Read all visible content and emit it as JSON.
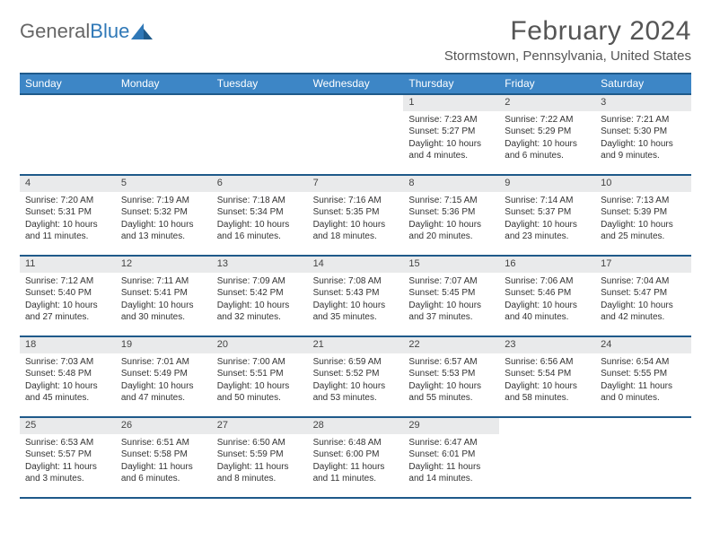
{
  "brand": {
    "part1": "General",
    "part2": "Blue"
  },
  "title": "February 2024",
  "location": "Stormstown, Pennsylvania, United States",
  "colors": {
    "header_bg": "#3d86c6",
    "header_border": "#1f5a8a",
    "daynum_bg": "#e9eaeb",
    "text": "#333333",
    "title_text": "#555555"
  },
  "weekdays": [
    "Sunday",
    "Monday",
    "Tuesday",
    "Wednesday",
    "Thursday",
    "Friday",
    "Saturday"
  ],
  "weeks": [
    [
      null,
      null,
      null,
      null,
      {
        "n": "1",
        "sr": "Sunrise: 7:23 AM",
        "ss": "Sunset: 5:27 PM",
        "dl": "Daylight: 10 hours and 4 minutes."
      },
      {
        "n": "2",
        "sr": "Sunrise: 7:22 AM",
        "ss": "Sunset: 5:29 PM",
        "dl": "Daylight: 10 hours and 6 minutes."
      },
      {
        "n": "3",
        "sr": "Sunrise: 7:21 AM",
        "ss": "Sunset: 5:30 PM",
        "dl": "Daylight: 10 hours and 9 minutes."
      }
    ],
    [
      {
        "n": "4",
        "sr": "Sunrise: 7:20 AM",
        "ss": "Sunset: 5:31 PM",
        "dl": "Daylight: 10 hours and 11 minutes."
      },
      {
        "n": "5",
        "sr": "Sunrise: 7:19 AM",
        "ss": "Sunset: 5:32 PM",
        "dl": "Daylight: 10 hours and 13 minutes."
      },
      {
        "n": "6",
        "sr": "Sunrise: 7:18 AM",
        "ss": "Sunset: 5:34 PM",
        "dl": "Daylight: 10 hours and 16 minutes."
      },
      {
        "n": "7",
        "sr": "Sunrise: 7:16 AM",
        "ss": "Sunset: 5:35 PM",
        "dl": "Daylight: 10 hours and 18 minutes."
      },
      {
        "n": "8",
        "sr": "Sunrise: 7:15 AM",
        "ss": "Sunset: 5:36 PM",
        "dl": "Daylight: 10 hours and 20 minutes."
      },
      {
        "n": "9",
        "sr": "Sunrise: 7:14 AM",
        "ss": "Sunset: 5:37 PM",
        "dl": "Daylight: 10 hours and 23 minutes."
      },
      {
        "n": "10",
        "sr": "Sunrise: 7:13 AM",
        "ss": "Sunset: 5:39 PM",
        "dl": "Daylight: 10 hours and 25 minutes."
      }
    ],
    [
      {
        "n": "11",
        "sr": "Sunrise: 7:12 AM",
        "ss": "Sunset: 5:40 PM",
        "dl": "Daylight: 10 hours and 27 minutes."
      },
      {
        "n": "12",
        "sr": "Sunrise: 7:11 AM",
        "ss": "Sunset: 5:41 PM",
        "dl": "Daylight: 10 hours and 30 minutes."
      },
      {
        "n": "13",
        "sr": "Sunrise: 7:09 AM",
        "ss": "Sunset: 5:42 PM",
        "dl": "Daylight: 10 hours and 32 minutes."
      },
      {
        "n": "14",
        "sr": "Sunrise: 7:08 AM",
        "ss": "Sunset: 5:43 PM",
        "dl": "Daylight: 10 hours and 35 minutes."
      },
      {
        "n": "15",
        "sr": "Sunrise: 7:07 AM",
        "ss": "Sunset: 5:45 PM",
        "dl": "Daylight: 10 hours and 37 minutes."
      },
      {
        "n": "16",
        "sr": "Sunrise: 7:06 AM",
        "ss": "Sunset: 5:46 PM",
        "dl": "Daylight: 10 hours and 40 minutes."
      },
      {
        "n": "17",
        "sr": "Sunrise: 7:04 AM",
        "ss": "Sunset: 5:47 PM",
        "dl": "Daylight: 10 hours and 42 minutes."
      }
    ],
    [
      {
        "n": "18",
        "sr": "Sunrise: 7:03 AM",
        "ss": "Sunset: 5:48 PM",
        "dl": "Daylight: 10 hours and 45 minutes."
      },
      {
        "n": "19",
        "sr": "Sunrise: 7:01 AM",
        "ss": "Sunset: 5:49 PM",
        "dl": "Daylight: 10 hours and 47 minutes."
      },
      {
        "n": "20",
        "sr": "Sunrise: 7:00 AM",
        "ss": "Sunset: 5:51 PM",
        "dl": "Daylight: 10 hours and 50 minutes."
      },
      {
        "n": "21",
        "sr": "Sunrise: 6:59 AM",
        "ss": "Sunset: 5:52 PM",
        "dl": "Daylight: 10 hours and 53 minutes."
      },
      {
        "n": "22",
        "sr": "Sunrise: 6:57 AM",
        "ss": "Sunset: 5:53 PM",
        "dl": "Daylight: 10 hours and 55 minutes."
      },
      {
        "n": "23",
        "sr": "Sunrise: 6:56 AM",
        "ss": "Sunset: 5:54 PM",
        "dl": "Daylight: 10 hours and 58 minutes."
      },
      {
        "n": "24",
        "sr": "Sunrise: 6:54 AM",
        "ss": "Sunset: 5:55 PM",
        "dl": "Daylight: 11 hours and 0 minutes."
      }
    ],
    [
      {
        "n": "25",
        "sr": "Sunrise: 6:53 AM",
        "ss": "Sunset: 5:57 PM",
        "dl": "Daylight: 11 hours and 3 minutes."
      },
      {
        "n": "26",
        "sr": "Sunrise: 6:51 AM",
        "ss": "Sunset: 5:58 PM",
        "dl": "Daylight: 11 hours and 6 minutes."
      },
      {
        "n": "27",
        "sr": "Sunrise: 6:50 AM",
        "ss": "Sunset: 5:59 PM",
        "dl": "Daylight: 11 hours and 8 minutes."
      },
      {
        "n": "28",
        "sr": "Sunrise: 6:48 AM",
        "ss": "Sunset: 6:00 PM",
        "dl": "Daylight: 11 hours and 11 minutes."
      },
      {
        "n": "29",
        "sr": "Sunrise: 6:47 AM",
        "ss": "Sunset: 6:01 PM",
        "dl": "Daylight: 11 hours and 14 minutes."
      },
      null,
      null
    ]
  ]
}
